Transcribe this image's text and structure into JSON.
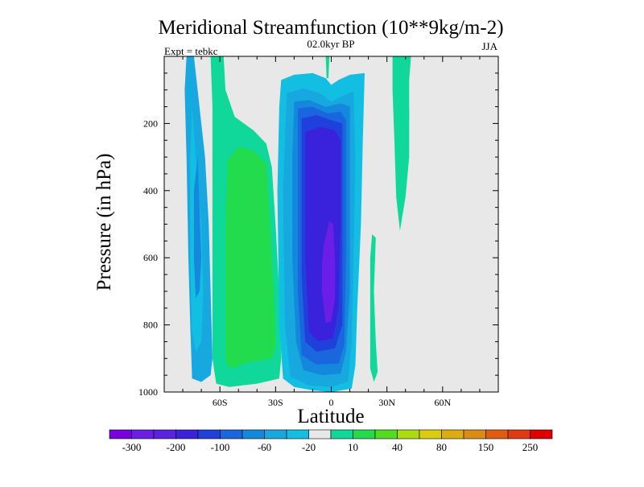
{
  "chart_data": {
    "type": "heatmap",
    "title": "Meridional Streamfunction (10**9kg/m-2)",
    "subtitle_center": "02.0kyr BP",
    "subtitle_left": "Expt = tebkc",
    "subtitle_right": "JJA",
    "xlabel": "Latitude",
    "ylabel": "Pressure (in hPa)",
    "xlim": [
      -90,
      90
    ],
    "ylim": [
      0,
      1000
    ],
    "y_reversed": true,
    "x_ticks": [
      {
        "value": -60,
        "label": "60S"
      },
      {
        "value": -30,
        "label": "30S"
      },
      {
        "value": 0,
        "label": "0"
      },
      {
        "value": 30,
        "label": "30N"
      },
      {
        "value": 60,
        "label": "60N"
      }
    ],
    "y_ticks": [
      {
        "value": 200,
        "label": "200"
      },
      {
        "value": 400,
        "label": "400"
      },
      {
        "value": 600,
        "label": "600"
      },
      {
        "value": 800,
        "label": "800"
      },
      {
        "value": 1000,
        "label": "1000"
      }
    ],
    "background_color": "#e8e8e8",
    "colorbar": {
      "colors": [
        "#7b00e0",
        "#6a1ee6",
        "#5a22e0",
        "#3a22dc",
        "#2040dc",
        "#1a66de",
        "#1488dc",
        "#18a8e0",
        "#12bfe2",
        "#e8e8e8",
        "#10d89a",
        "#22dc4e",
        "#52dc1e",
        "#aadc10",
        "#dccc10",
        "#dcac10",
        "#dc8c10",
        "#e05c10",
        "#e03a10",
        "#e00000"
      ],
      "labels": [
        "-300",
        "-200",
        "-100",
        "-60",
        "-20",
        "10",
        "40",
        "80",
        "150",
        "250"
      ]
    },
    "regions": [
      {
        "name": "southern-cell-outer",
        "color": "#18a8e0",
        "points": [
          [
            -78,
            0
          ],
          [
            -74,
            0
          ],
          [
            -73,
            50
          ],
          [
            -71,
            150
          ],
          [
            -68,
            300
          ],
          [
            -66,
            500
          ],
          [
            -65,
            700
          ],
          [
            -64,
            900
          ],
          [
            -65,
            950
          ],
          [
            -70,
            970
          ],
          [
            -75,
            960
          ],
          [
            -76,
            800
          ],
          [
            -77,
            600
          ],
          [
            -78,
            300
          ],
          [
            -79,
            100
          ]
        ]
      },
      {
        "name": "southern-cell-inner",
        "color": "#12bfe2",
        "points": [
          [
            -75,
            150
          ],
          [
            -73,
            300
          ],
          [
            -70,
            500
          ],
          [
            -69,
            700
          ],
          [
            -70,
            850
          ],
          [
            -73,
            880
          ],
          [
            -75,
            820
          ],
          [
            -76,
            600
          ],
          [
            -76,
            300
          ]
        ]
      },
      {
        "name": "southern-cell-core",
        "color": "#1488dc",
        "points": [
          [
            -72,
            300
          ],
          [
            -71,
            450
          ],
          [
            -70,
            600
          ],
          [
            -71,
            700
          ],
          [
            -73,
            720
          ],
          [
            -74,
            600
          ],
          [
            -74,
            400
          ]
        ]
      },
      {
        "name": "southern-positive-outer",
        "color": "#10d89a",
        "points": [
          [
            -65,
            0
          ],
          [
            -58,
            0
          ],
          [
            -57,
            100
          ],
          [
            -52,
            180
          ],
          [
            -42,
            220
          ],
          [
            -35,
            260
          ],
          [
            -32,
            330
          ],
          [
            -30,
            500
          ],
          [
            -28,
            700
          ],
          [
            -27,
            900
          ],
          [
            -28,
            960
          ],
          [
            -40,
            975
          ],
          [
            -55,
            985
          ],
          [
            -62,
            975
          ],
          [
            -64,
            900
          ],
          [
            -64,
            700
          ],
          [
            -64,
            400
          ],
          [
            -64,
            150
          ]
        ]
      },
      {
        "name": "southern-positive-core",
        "color": "#22dc4e",
        "points": [
          [
            -56,
            310
          ],
          [
            -50,
            270
          ],
          [
            -42,
            280
          ],
          [
            -35,
            320
          ],
          [
            -33,
            500
          ],
          [
            -31,
            700
          ],
          [
            -30,
            860
          ],
          [
            -32,
            900
          ],
          [
            -44,
            910
          ],
          [
            -55,
            930
          ],
          [
            -57,
            900
          ],
          [
            -57,
            700
          ],
          [
            -57,
            500
          ]
        ]
      },
      {
        "name": "hadley-cell-1",
        "color": "#12bfe2",
        "points": [
          [
            -27,
            70
          ],
          [
            -20,
            55
          ],
          [
            -10,
            50
          ],
          [
            -3,
            65
          ],
          [
            0,
            85
          ],
          [
            4,
            70
          ],
          [
            10,
            55
          ],
          [
            18,
            50
          ],
          [
            17,
            250
          ],
          [
            16,
            500
          ],
          [
            14,
            750
          ],
          [
            13,
            920
          ],
          [
            11,
            990
          ],
          [
            0,
            1000
          ],
          [
            -10,
            995
          ],
          [
            -20,
            985
          ],
          [
            -26,
            960
          ],
          [
            -28,
            800
          ],
          [
            -29,
            400
          ],
          [
            -28,
            150
          ]
        ]
      },
      {
        "name": "hadley-cell-2",
        "color": "#18a8e0",
        "points": [
          [
            -24,
            110
          ],
          [
            -15,
            95
          ],
          [
            -6,
            110
          ],
          [
            0,
            135
          ],
          [
            7,
            115
          ],
          [
            12,
            105
          ],
          [
            13,
            300
          ],
          [
            12,
            600
          ],
          [
            11,
            850
          ],
          [
            9,
            970
          ],
          [
            0,
            985
          ],
          [
            -12,
            980
          ],
          [
            -22,
            955
          ],
          [
            -25,
            800
          ],
          [
            -26,
            400
          ]
        ]
      },
      {
        "name": "hadley-cell-3",
        "color": "#1488dc",
        "points": [
          [
            -20,
            135
          ],
          [
            -12,
            130
          ],
          [
            -3,
            150
          ],
          [
            5,
            140
          ],
          [
            10,
            150
          ],
          [
            10,
            400
          ],
          [
            10,
            700
          ],
          [
            8,
            880
          ],
          [
            5,
            945
          ],
          [
            -5,
            950
          ],
          [
            -15,
            935
          ],
          [
            -19,
            850
          ],
          [
            -21,
            600
          ],
          [
            -21,
            300
          ]
        ]
      },
      {
        "name": "hadley-cell-4",
        "color": "#1a66de",
        "points": [
          [
            -18,
            155
          ],
          [
            -10,
            150
          ],
          [
            -2,
            170
          ],
          [
            5,
            165
          ],
          [
            8,
            190
          ],
          [
            8,
            600
          ],
          [
            7,
            860
          ],
          [
            4,
            915
          ],
          [
            -8,
            918
          ],
          [
            -16,
            890
          ],
          [
            -18,
            700
          ],
          [
            -18,
            350
          ]
        ]
      },
      {
        "name": "hadley-cell-5",
        "color": "#2040dc",
        "points": [
          [
            -16,
            185
          ],
          [
            -8,
            175
          ],
          [
            0,
            190
          ],
          [
            6,
            200
          ],
          [
            6,
            500
          ],
          [
            6,
            800
          ],
          [
            2,
            870
          ],
          [
            -8,
            880
          ],
          [
            -14,
            850
          ],
          [
            -16,
            650
          ],
          [
            -16,
            350
          ]
        ]
      },
      {
        "name": "hadley-cell-6",
        "color": "#3a22dc",
        "points": [
          [
            -14,
            225
          ],
          [
            -6,
            210
          ],
          [
            2,
            220
          ],
          [
            5,
            250
          ],
          [
            5,
            500
          ],
          [
            4,
            750
          ],
          [
            1,
            840
          ],
          [
            -7,
            850
          ],
          [
            -12,
            820
          ],
          [
            -14,
            600
          ],
          [
            -14,
            350
          ]
        ]
      },
      {
        "name": "hadley-core",
        "color": "#6a1ee6",
        "points": [
          [
            -4,
            560
          ],
          [
            -1,
            490
          ],
          [
            1,
            500
          ],
          [
            2,
            600
          ],
          [
            2,
            720
          ],
          [
            0,
            790
          ],
          [
            -3,
            795
          ],
          [
            -5,
            700
          ],
          [
            -5,
            620
          ]
        ]
      },
      {
        "name": "equatorial-plume",
        "color": "#10d89a",
        "points": [
          [
            -3,
            0
          ],
          [
            -1,
            0
          ],
          [
            -1.5,
            65
          ],
          [
            -2.5,
            65
          ]
        ]
      },
      {
        "name": "tropical-strip",
        "color": "#10d89a",
        "points": [
          [
            22,
            530
          ],
          [
            24,
            540
          ],
          [
            23,
            700
          ],
          [
            24,
            850
          ],
          [
            25,
            940
          ],
          [
            23,
            970
          ],
          [
            21,
            930
          ],
          [
            21,
            750
          ],
          [
            21,
            600
          ]
        ]
      },
      {
        "name": "subtropical-plume",
        "color": "#10d89a",
        "points": [
          [
            33,
            0
          ],
          [
            43,
            0
          ],
          [
            42,
            70
          ],
          [
            42,
            180
          ],
          [
            42,
            300
          ],
          [
            40,
            420
          ],
          [
            37,
            520
          ],
          [
            35,
            420
          ],
          [
            34,
            250
          ],
          [
            33,
            100
          ]
        ]
      },
      {
        "name": "subtropical-plume-arm",
        "color": "#10d89a",
        "points": [
          [
            40,
            150
          ],
          [
            42,
            160
          ],
          [
            42,
            190
          ],
          [
            41,
            200
          ],
          [
            40,
            185
          ]
        ]
      }
    ]
  }
}
